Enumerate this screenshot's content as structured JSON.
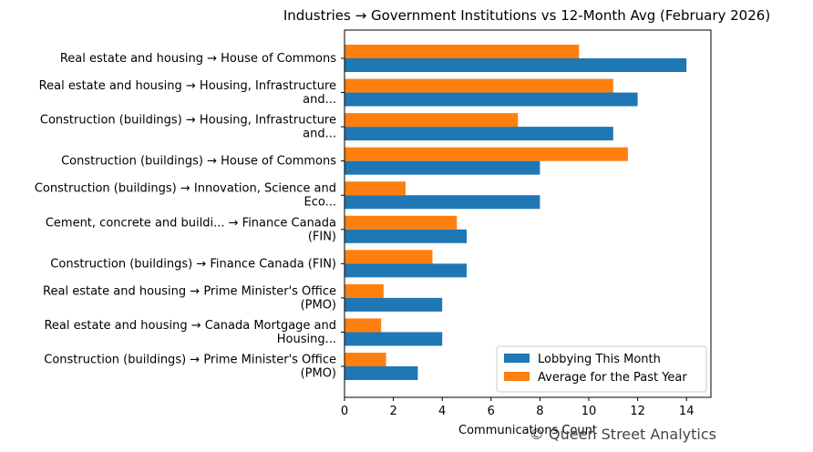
{
  "chart_data": {
    "type": "bar",
    "orientation": "horizontal",
    "title": "Industries → Government Institutions vs 12-Month Avg (February 2026)",
    "xlabel": "Communications Count",
    "ylabel": "",
    "xlim": [
      0,
      15
    ],
    "xticks": [
      0,
      2,
      4,
      6,
      8,
      10,
      12,
      14
    ],
    "grid": false,
    "legend_position": "lower-right",
    "categories": [
      [
        "Real estate and housing → House of Commons"
      ],
      [
        "Real estate and housing → Housing, Infrastructure",
        "and..."
      ],
      [
        "Construction (buildings) → Housing, Infrastructure",
        "and..."
      ],
      [
        "Construction (buildings) → House of Commons"
      ],
      [
        "Construction (buildings) → Innovation, Science and",
        "Eco..."
      ],
      [
        "Cement, concrete and buildi... → Finance Canada",
        "(FIN)"
      ],
      [
        "Construction (buildings) → Finance Canada (FIN)"
      ],
      [
        "Real estate and housing → Prime Minister's Office",
        "(PMO)"
      ],
      [
        "Real estate and housing → Canada Mortgage and",
        "Housing..."
      ],
      [
        "Construction (buildings) → Prime Minister's Office",
        "(PMO)"
      ]
    ],
    "series": [
      {
        "name": "Lobbying This Month",
        "color": "#1f77b4",
        "values": [
          14,
          12,
          11,
          8,
          8,
          5,
          5,
          4,
          4,
          3
        ]
      },
      {
        "name": "Average for the Past Year",
        "color": "#ff7f0e",
        "values": [
          9.6,
          11.0,
          7.1,
          11.6,
          2.5,
          4.6,
          3.6,
          1.6,
          1.5,
          1.7
        ]
      }
    ]
  },
  "watermark": "© Queen Street Analytics"
}
